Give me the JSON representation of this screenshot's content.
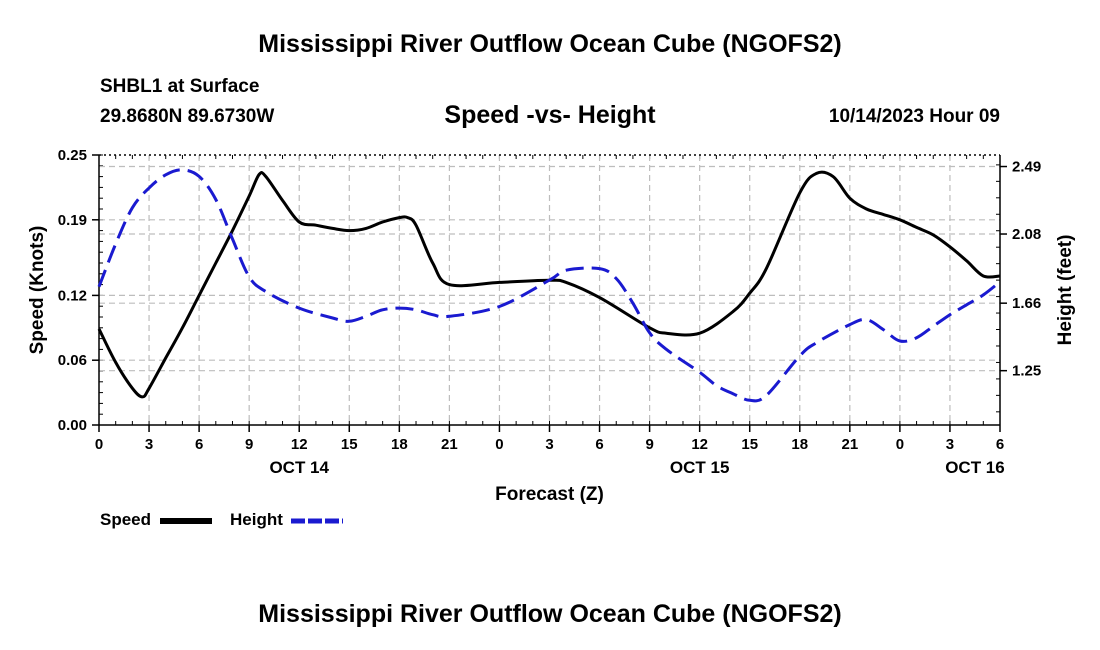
{
  "header": {
    "main_title": "Mississippi River Outflow Ocean Cube (NGOFS2)",
    "station": "SHBL1 at Surface",
    "coordinates": "29.8680N  89.6730W",
    "subtitle": "Speed -vs- Height",
    "datetime": "10/14/2023 Hour 09"
  },
  "footer": {
    "main_title": "Mississippi River Outflow Ocean Cube (NGOFS2)"
  },
  "chart_data": {
    "type": "line",
    "title": "Speed -vs- Height",
    "xlabel": "Forecast (Z)",
    "ylabel": "Speed (Knots)",
    "y2label": "Height (feet)",
    "x_range": [
      0,
      54
    ],
    "ylim": [
      0.0,
      0.25
    ],
    "y2lim": [
      0.92,
      2.56
    ],
    "x_tick_positions": [
      0,
      3,
      6,
      9,
      12,
      15,
      18,
      21,
      24,
      27,
      30,
      33,
      36,
      39,
      42,
      45,
      48,
      51,
      54
    ],
    "x_tick_labels": [
      "0",
      "3",
      "6",
      "9",
      "12",
      "15",
      "18",
      "21",
      "0",
      "3",
      "6",
      "9",
      "12",
      "15",
      "18",
      "21",
      "0",
      "3",
      "6"
    ],
    "date_labels": [
      {
        "x": 12,
        "label": "OCT 14"
      },
      {
        "x": 36,
        "label": "OCT 15"
      },
      {
        "x": 52.5,
        "label": "OCT 16"
      }
    ],
    "y_ticks": [
      0.0,
      0.06,
      0.12,
      0.19,
      0.25
    ],
    "y_tick_labels": [
      "0.00",
      "0.06",
      "0.12",
      "0.19",
      "0.25"
    ],
    "y2_ticks": [
      1.25,
      1.66,
      2.08,
      2.49
    ],
    "y2_tick_labels": [
      "1.25",
      "1.66",
      "2.08",
      "2.49"
    ],
    "grid": true,
    "legend_position": "bottom-left",
    "series": [
      {
        "name": "Speed",
        "axis": "left",
        "color": "#000000",
        "dash": "solid",
        "x": [
          0,
          1,
          2,
          2.6,
          3,
          4,
          5,
          6,
          7,
          8,
          9,
          9.6,
          10,
          11,
          12,
          13,
          14,
          15,
          16,
          17,
          18,
          18.5,
          19,
          20,
          21,
          24,
          27,
          28,
          30,
          33,
          34,
          36,
          38,
          39,
          40,
          42,
          43,
          44,
          45,
          46,
          47,
          48,
          49,
          50,
          51,
          52,
          53,
          54
        ],
        "values": [
          0.089,
          0.058,
          0.034,
          0.026,
          0.034,
          0.062,
          0.09,
          0.12,
          0.15,
          0.18,
          0.212,
          0.232,
          0.23,
          0.208,
          0.188,
          0.185,
          0.182,
          0.18,
          0.182,
          0.188,
          0.192,
          0.192,
          0.185,
          0.15,
          0.13,
          0.132,
          0.134,
          0.132,
          0.118,
          0.09,
          0.085,
          0.085,
          0.105,
          0.122,
          0.145,
          0.215,
          0.233,
          0.23,
          0.21,
          0.2,
          0.195,
          0.19,
          0.183,
          0.176,
          0.165,
          0.152,
          0.138,
          0.138
        ]
      },
      {
        "name": "Height",
        "axis": "right",
        "color": "#1a1ad0",
        "dash": "dashed",
        "x": [
          0,
          1,
          2,
          3,
          4,
          5,
          6,
          7,
          8,
          9,
          10,
          12,
          14,
          15,
          16,
          17,
          18,
          19,
          20,
          21,
          24,
          27,
          28,
          30,
          31,
          32,
          33,
          34,
          36,
          37,
          38,
          39,
          40,
          42,
          43,
          45,
          46,
          47,
          48,
          49,
          50,
          51,
          52,
          53,
          54
        ],
        "values": [
          1.76,
          2.02,
          2.24,
          2.36,
          2.44,
          2.47,
          2.43,
          2.29,
          2.05,
          1.82,
          1.73,
          1.63,
          1.57,
          1.55,
          1.58,
          1.62,
          1.63,
          1.62,
          1.59,
          1.58,
          1.64,
          1.8,
          1.86,
          1.87,
          1.81,
          1.66,
          1.48,
          1.38,
          1.24,
          1.16,
          1.11,
          1.07,
          1.1,
          1.34,
          1.42,
          1.53,
          1.56,
          1.5,
          1.43,
          1.45,
          1.52,
          1.59,
          1.65,
          1.71,
          1.79
        ]
      }
    ]
  }
}
